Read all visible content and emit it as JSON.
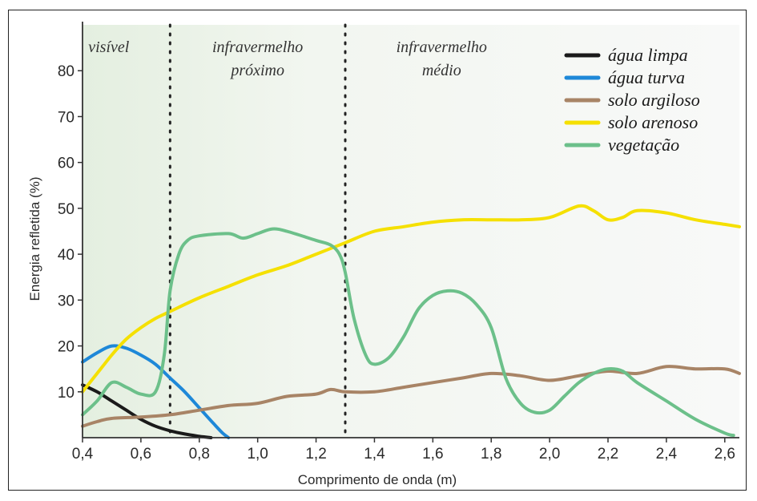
{
  "chart_data": {
    "type": "line",
    "title": "",
    "xlabel": "Comprimento de onda (m)",
    "ylabel": "Energia refletida (%)",
    "xlim": [
      0.4,
      2.65
    ],
    "ylim": [
      0,
      90
    ],
    "x_ticks": [
      "0,4",
      "0,6",
      "0,8",
      "1,0",
      "1,2",
      "1,4",
      "1,6",
      "1,8",
      "2,0",
      "2,2",
      "2,4",
      "2,6"
    ],
    "y_ticks": [
      "10",
      "20",
      "30",
      "40",
      "50",
      "60",
      "70",
      "80"
    ],
    "grid": false,
    "legend_position": "top-right",
    "regions": [
      {
        "label_lines": [
          "visível"
        ],
        "x_start": 0.4,
        "x_end": 0.7
      },
      {
        "label_lines": [
          "infravermelho",
          "próximo"
        ],
        "x_start": 0.7,
        "x_end": 1.3
      },
      {
        "label_lines": [
          "infravermelho",
          "médio"
        ],
        "x_start": 1.3,
        "x_end": 2.65
      }
    ],
    "dividers": [
      0.7,
      1.3
    ],
    "series": [
      {
        "name": "água limpa",
        "color": "#1a1a1a",
        "points": [
          [
            0.4,
            11.5
          ],
          [
            0.45,
            10
          ],
          [
            0.5,
            8
          ],
          [
            0.55,
            6
          ],
          [
            0.6,
            4
          ],
          [
            0.65,
            2.5
          ],
          [
            0.7,
            1.5
          ],
          [
            0.75,
            0.8
          ],
          [
            0.8,
            0.3
          ],
          [
            0.84,
            0
          ]
        ]
      },
      {
        "name": "água turva",
        "color": "#1e88d8",
        "points": [
          [
            0.4,
            16.5
          ],
          [
            0.45,
            18.5
          ],
          [
            0.5,
            20
          ],
          [
            0.55,
            19.5
          ],
          [
            0.6,
            18
          ],
          [
            0.65,
            16
          ],
          [
            0.7,
            13
          ],
          [
            0.75,
            10
          ],
          [
            0.8,
            6.5
          ],
          [
            0.85,
            3
          ],
          [
            0.88,
            1
          ],
          [
            0.9,
            0
          ]
        ]
      },
      {
        "name": "solo argiloso",
        "color": "#a88466",
        "points": [
          [
            0.4,
            2.5
          ],
          [
            0.45,
            3.5
          ],
          [
            0.5,
            4.2
          ],
          [
            0.6,
            4.5
          ],
          [
            0.7,
            5
          ],
          [
            0.8,
            6
          ],
          [
            0.9,
            7
          ],
          [
            1.0,
            7.5
          ],
          [
            1.1,
            9
          ],
          [
            1.2,
            9.5
          ],
          [
            1.25,
            10.5
          ],
          [
            1.3,
            10
          ],
          [
            1.4,
            10
          ],
          [
            1.5,
            11
          ],
          [
            1.6,
            12
          ],
          [
            1.7,
            13
          ],
          [
            1.8,
            14
          ],
          [
            1.9,
            13.5
          ],
          [
            2.0,
            12.5
          ],
          [
            2.1,
            13.5
          ],
          [
            2.2,
            14.5
          ],
          [
            2.3,
            14
          ],
          [
            2.4,
            15.5
          ],
          [
            2.5,
            15
          ],
          [
            2.6,
            15
          ],
          [
            2.65,
            14
          ]
        ]
      },
      {
        "name": "solo arenoso",
        "color": "#f5e000",
        "points": [
          [
            0.4,
            10
          ],
          [
            0.45,
            14
          ],
          [
            0.5,
            18
          ],
          [
            0.55,
            21.5
          ],
          [
            0.6,
            24
          ],
          [
            0.65,
            26
          ],
          [
            0.7,
            27.5
          ],
          [
            0.8,
            30.5
          ],
          [
            0.9,
            33
          ],
          [
            1.0,
            35.5
          ],
          [
            1.1,
            37.5
          ],
          [
            1.2,
            40
          ],
          [
            1.3,
            42.5
          ],
          [
            1.4,
            45
          ],
          [
            1.5,
            46
          ],
          [
            1.6,
            47
          ],
          [
            1.7,
            47.5
          ],
          [
            1.8,
            47.5
          ],
          [
            1.9,
            47.5
          ],
          [
            2.0,
            48
          ],
          [
            2.1,
            50.5
          ],
          [
            2.15,
            49.5
          ],
          [
            2.2,
            47.5
          ],
          [
            2.25,
            48
          ],
          [
            2.3,
            49.5
          ],
          [
            2.4,
            49
          ],
          [
            2.5,
            47.5
          ],
          [
            2.6,
            46.5
          ],
          [
            2.65,
            46
          ]
        ]
      },
      {
        "name": "vegetação",
        "color": "#6cc08a",
        "points": [
          [
            0.4,
            5
          ],
          [
            0.45,
            8
          ],
          [
            0.5,
            12
          ],
          [
            0.55,
            11
          ],
          [
            0.6,
            9.5
          ],
          [
            0.65,
            10
          ],
          [
            0.68,
            18
          ],
          [
            0.7,
            32
          ],
          [
            0.73,
            40
          ],
          [
            0.76,
            43
          ],
          [
            0.8,
            44
          ],
          [
            0.9,
            44.5
          ],
          [
            0.95,
            43.5
          ],
          [
            1.0,
            44.5
          ],
          [
            1.05,
            45.5
          ],
          [
            1.1,
            45
          ],
          [
            1.2,
            43
          ],
          [
            1.25,
            42
          ],
          [
            1.28,
            40
          ],
          [
            1.3,
            36
          ],
          [
            1.33,
            26
          ],
          [
            1.37,
            18
          ],
          [
            1.4,
            16
          ],
          [
            1.45,
            17.5
          ],
          [
            1.5,
            22
          ],
          [
            1.55,
            28
          ],
          [
            1.6,
            31
          ],
          [
            1.65,
            32
          ],
          [
            1.7,
            31.5
          ],
          [
            1.75,
            29
          ],
          [
            1.8,
            24
          ],
          [
            1.85,
            13
          ],
          [
            1.9,
            7.5
          ],
          [
            1.95,
            5.5
          ],
          [
            2.0,
            6
          ],
          [
            2.05,
            9
          ],
          [
            2.1,
            12
          ],
          [
            2.15,
            14
          ],
          [
            2.2,
            15
          ],
          [
            2.25,
            14.5
          ],
          [
            2.3,
            12
          ],
          [
            2.4,
            8
          ],
          [
            2.5,
            4
          ],
          [
            2.6,
            1
          ],
          [
            2.63,
            0.5
          ]
        ]
      }
    ]
  }
}
